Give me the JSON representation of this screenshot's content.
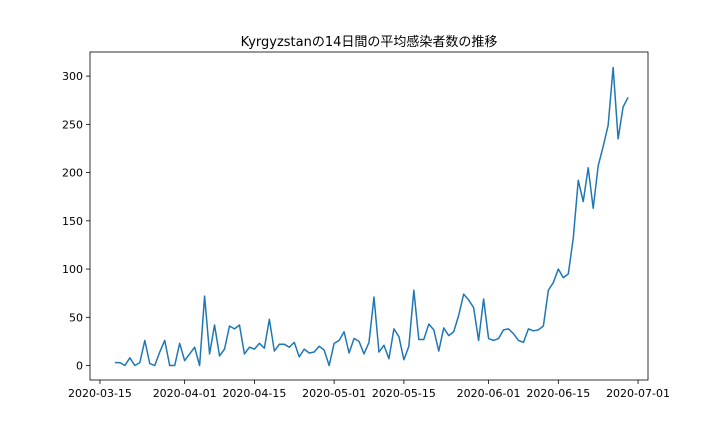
{
  "chart_data": {
    "type": "line",
    "title": "Kyrgyzstanの14日間の平均感染者数の推移",
    "xlabel": "",
    "ylabel": "",
    "series_color": "#1f77b4",
    "grid": false,
    "x_start": "2020-03-18",
    "x_end": "2020-06-29",
    "xlim": [
      "2020-03-13",
      "2020-07-03"
    ],
    "ylim": [
      -15,
      325
    ],
    "x_ticks": [
      "2020-03-15",
      "2020-04-01",
      "2020-04-15",
      "2020-05-01",
      "2020-05-15",
      "2020-06-01",
      "2020-06-15",
      "2020-07-01"
    ],
    "y_ticks": [
      0,
      50,
      100,
      150,
      200,
      250,
      300
    ],
    "series": [
      {
        "values": [
          3,
          3,
          0,
          8,
          0,
          3,
          26,
          2,
          0,
          14,
          26,
          0,
          0,
          23,
          5,
          12,
          19,
          0,
          72,
          12,
          42,
          10,
          17,
          41,
          38,
          42,
          12,
          19,
          17,
          23,
          18,
          48,
          15,
          22,
          22,
          19,
          24,
          9,
          17,
          13,
          14,
          20,
          16,
          0,
          23,
          26,
          35,
          13,
          28,
          25,
          12,
          24,
          71,
          14,
          21,
          7,
          38,
          30,
          6,
          20,
          78,
          27,
          27,
          43,
          37,
          15,
          39,
          31,
          35,
          52,
          74,
          68,
          60,
          26,
          69,
          28,
          26,
          28,
          37,
          38,
          33,
          26,
          24,
          38,
          36,
          37,
          41,
          78,
          86,
          100,
          91,
          95,
          132,
          192,
          170,
          205,
          163,
          207,
          227,
          249,
          309,
          235,
          268,
          278
        ]
      }
    ]
  }
}
